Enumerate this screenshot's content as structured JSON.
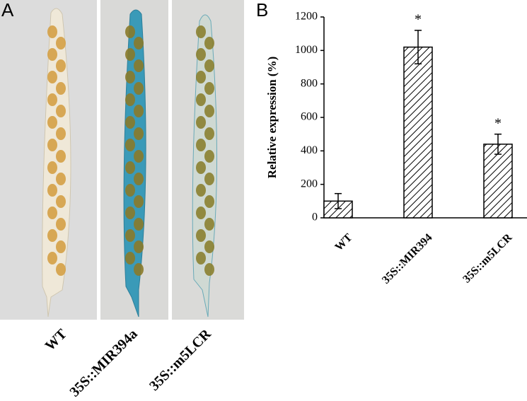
{
  "panel_a": {
    "label": "A",
    "images": [
      "WT",
      "35S::MIR394a",
      "35S::m5LCR"
    ]
  },
  "chart_data": {
    "type": "bar",
    "panel_label": "B",
    "y_label": "Relative expression (%)",
    "categories": [
      "WT",
      "35S::MIR394",
      "35S::m5LCR"
    ],
    "values": [
      100,
      1020,
      440
    ],
    "errors": [
      45,
      100,
      60
    ],
    "annotations": [
      {
        "category": "35S::MIR394",
        "text": "*"
      },
      {
        "category": "35S::m5LCR",
        "text": "*"
      }
    ],
    "color": "#000000",
    "pattern": "hatch",
    "ylim": [
      0,
      1200
    ],
    "yticks": [
      0,
      200,
      400,
      600,
      800,
      1000,
      1200
    ],
    "grid": false
  }
}
